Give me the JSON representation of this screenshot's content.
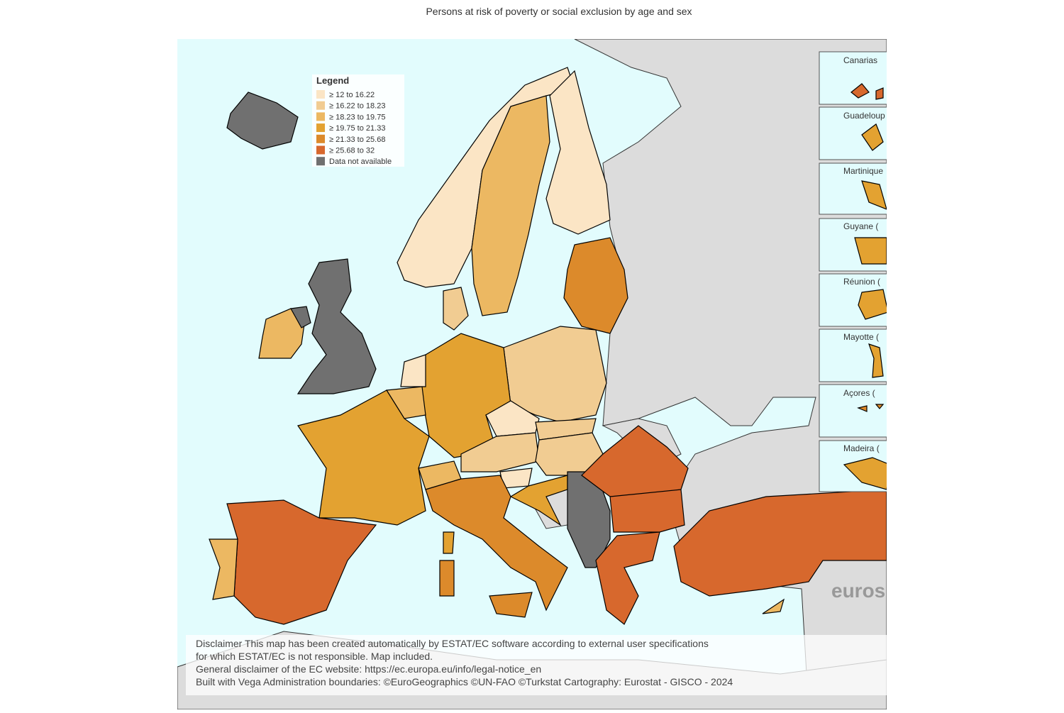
{
  "header": {
    "title": "Persons at risk of poverty or social exclusion by age and sex"
  },
  "legend": {
    "title": "Legend",
    "items": [
      {
        "label": "≥ 12 to 16.22",
        "color": "#fbe5c5"
      },
      {
        "label": "≥ 16.22 to 18.23",
        "color": "#f1cc92"
      },
      {
        "label": "≥ 18.23 to 19.75",
        "color": "#ecb862"
      },
      {
        "label": "≥ 19.75 to 21.33",
        "color": "#e3a231"
      },
      {
        "label": "≥ 21.33 to 25.68",
        "color": "#dc8a2b"
      },
      {
        "label": "≥ 25.68 to 32",
        "color": "#d7682d"
      },
      {
        "label": "Data not available",
        "color": "#707070"
      }
    ]
  },
  "insets": [
    "Canarias",
    "Guadeloup",
    "Martinique",
    "Guyane (",
    "Réunion (",
    "Mayotte (",
    "Açores (",
    "Madeira ("
  ],
  "watermark": "euros",
  "disclaimer": [
    "Disclaimer This map has been created automatically by ESTAT/EC software according to external user specifications",
    "for which ESTAT/EC is not responsible. Map included.",
    "General disclaimer of the EC website: https://ec.europa.eu/info/legal-notice_en",
    "Built with Vega Administration boundaries: ©EuroGeographics ©UN-FAO ©Turkstat Cartography: Eurostat - GISCO - 2024"
  ]
}
